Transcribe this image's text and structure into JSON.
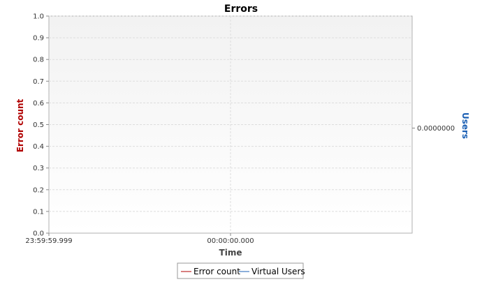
{
  "chart_data": {
    "type": "line",
    "title": "Errors",
    "xlabel": "Time",
    "ylabel": "Error count",
    "y2label": "Users",
    "ylim": [
      0,
      1.0
    ],
    "yticks": [
      "0.0",
      "0.1",
      "0.2",
      "0.3",
      "0.4",
      "0.5",
      "0.6",
      "0.7",
      "0.8",
      "0.9",
      "1.0"
    ],
    "xticks": [
      "23:59:59.999",
      "00:00:00.000"
    ],
    "y2ticks": [
      "0.0000000"
    ],
    "grid": true,
    "legend_position": "bottom",
    "series": [
      {
        "name": "Error count",
        "color": "#b00000",
        "axis": "left",
        "x": [],
        "y": []
      },
      {
        "name": "Virtual Users",
        "color": "#1a5fb4",
        "axis": "right",
        "x": [],
        "y": []
      }
    ]
  }
}
